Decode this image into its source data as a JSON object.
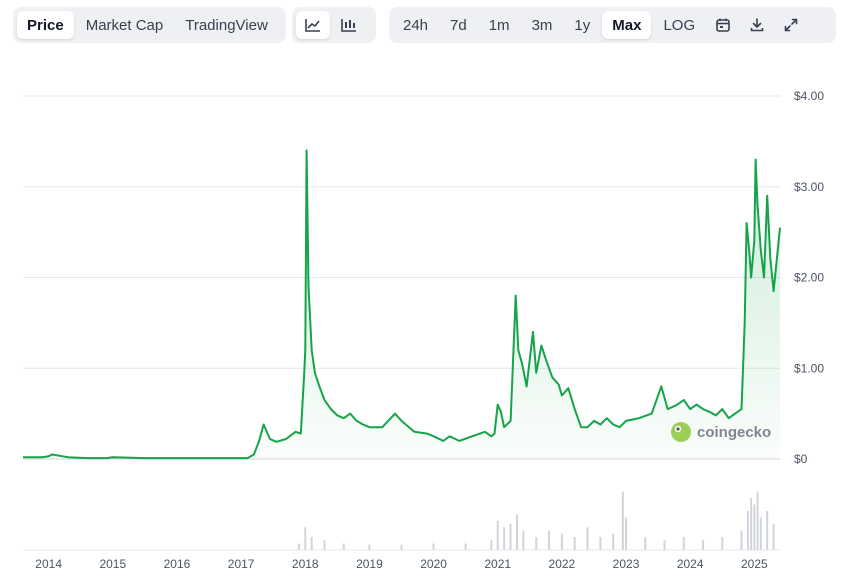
{
  "toolbar": {
    "view_tabs": [
      {
        "label": "Price",
        "active": true
      },
      {
        "label": "Market Cap",
        "active": false
      },
      {
        "label": "TradingView",
        "active": false
      }
    ],
    "chart_type_icons": [
      {
        "icon": "line-chart-icon",
        "active": true
      },
      {
        "icon": "candlestick-chart-icon",
        "active": false
      }
    ],
    "ranges": [
      {
        "label": "24h",
        "active": false
      },
      {
        "label": "7d",
        "active": false
      },
      {
        "label": "1m",
        "active": false
      },
      {
        "label": "3m",
        "active": false
      },
      {
        "label": "1y",
        "active": false
      },
      {
        "label": "Max",
        "active": true
      },
      {
        "label": "LOG",
        "active": false
      }
    ],
    "tool_icons": [
      "calendar-icon",
      "download-icon",
      "expand-icon"
    ]
  },
  "watermark": {
    "text": "coingecko",
    "icon": "coingecko-logo-icon"
  },
  "colors": {
    "line": "#16a34a",
    "fill": "#16a34a",
    "grid": "#e5e7eb",
    "volume": "#d1d5db",
    "active_bg": "#ffffff",
    "group_bg": "#eef0f3"
  },
  "chart_data": {
    "type": "area",
    "title": "",
    "xlabel": "",
    "ylabel": "",
    "ylim": [
      0,
      4
    ],
    "xlim": [
      2013.6,
      2025.4
    ],
    "grid": true,
    "y_tick_labels": [
      "$0",
      "$1.00",
      "$2.00",
      "$3.00",
      "$4.00"
    ],
    "y_tick_values": [
      0,
      1,
      2,
      3,
      4
    ],
    "x_tick_labels": [
      "2014",
      "2015",
      "2016",
      "2017",
      "2018",
      "2019",
      "2020",
      "2021",
      "2022",
      "2023",
      "2024",
      "2025"
    ],
    "x_tick_values": [
      2014,
      2015,
      2016,
      2017,
      2018,
      2019,
      2020,
      2021,
      2022,
      2023,
      2024,
      2025
    ],
    "series": [
      {
        "x": [
          2013.6,
          2013.9,
          2014.0,
          2014.05,
          2014.3,
          2014.6,
          2014.9,
          2015.0,
          2015.5,
          2016.0,
          2016.5,
          2016.9,
          2017.1,
          2017.2,
          2017.28,
          2017.35,
          2017.45,
          2017.55,
          2017.7,
          2017.85,
          2017.93,
          2017.98,
          2018.0,
          2018.02,
          2018.05,
          2018.1,
          2018.15,
          2018.22,
          2018.3,
          2018.4,
          2018.5,
          2018.6,
          2018.7,
          2018.8,
          2018.9,
          2019.0,
          2019.2,
          2019.4,
          2019.5,
          2019.7,
          2019.9,
          2020.0,
          2020.15,
          2020.25,
          2020.4,
          2020.6,
          2020.8,
          2020.9,
          2020.95,
          2021.0,
          2021.05,
          2021.1,
          2021.2,
          2021.28,
          2021.32,
          2021.38,
          2021.45,
          2021.55,
          2021.6,
          2021.68,
          2021.75,
          2021.85,
          2021.95,
          2022.0,
          2022.1,
          2022.2,
          2022.3,
          2022.4,
          2022.5,
          2022.6,
          2022.7,
          2022.8,
          2022.9,
          2023.0,
          2023.2,
          2023.4,
          2023.55,
          2023.65,
          2023.8,
          2023.9,
          2024.0,
          2024.1,
          2024.2,
          2024.3,
          2024.4,
          2024.5,
          2024.6,
          2024.7,
          2024.8,
          2024.85,
          2024.88,
          2024.92,
          2024.95,
          2025.0,
          2025.02,
          2025.05,
          2025.1,
          2025.15,
          2025.2,
          2025.25,
          2025.3,
          2025.35,
          2025.4
        ],
        "y": [
          0.02,
          0.02,
          0.03,
          0.05,
          0.02,
          0.01,
          0.01,
          0.02,
          0.01,
          0.01,
          0.01,
          0.01,
          0.01,
          0.05,
          0.2,
          0.38,
          0.22,
          0.19,
          0.22,
          0.3,
          0.28,
          0.9,
          1.2,
          3.4,
          1.9,
          1.2,
          0.95,
          0.8,
          0.65,
          0.55,
          0.48,
          0.45,
          0.5,
          0.42,
          0.38,
          0.35,
          0.35,
          0.5,
          0.42,
          0.3,
          0.28,
          0.25,
          0.2,
          0.25,
          0.2,
          0.25,
          0.3,
          0.25,
          0.28,
          0.6,
          0.52,
          0.35,
          0.42,
          1.8,
          1.2,
          1.05,
          0.8,
          1.4,
          0.95,
          1.25,
          1.1,
          0.9,
          0.82,
          0.7,
          0.78,
          0.55,
          0.35,
          0.35,
          0.42,
          0.38,
          0.45,
          0.38,
          0.35,
          0.42,
          0.45,
          0.5,
          0.8,
          0.55,
          0.6,
          0.65,
          0.55,
          0.6,
          0.55,
          0.52,
          0.48,
          0.55,
          0.45,
          0.5,
          0.55,
          1.5,
          2.6,
          2.3,
          2.0,
          2.4,
          3.3,
          2.8,
          2.3,
          2.0,
          2.9,
          2.2,
          1.85,
          2.2,
          2.55
        ]
      }
    ],
    "volume": {
      "x": [
        2017.9,
        2018.0,
        2018.1,
        2018.3,
        2018.6,
        2019.0,
        2019.5,
        2020.0,
        2020.5,
        2020.9,
        2021.0,
        2021.1,
        2021.2,
        2021.3,
        2021.4,
        2021.6,
        2021.8,
        2022.0,
        2022.2,
        2022.4,
        2022.6,
        2022.8,
        2022.95,
        2023.0,
        2023.3,
        2023.6,
        2023.9,
        2024.2,
        2024.5,
        2024.8,
        2024.9,
        2024.95,
        2025.0,
        2025.05,
        2025.1,
        2025.2,
        2025.3
      ],
      "y": [
        0.1,
        0.35,
        0.2,
        0.15,
        0.1,
        0.08,
        0.08,
        0.1,
        0.1,
        0.15,
        0.45,
        0.35,
        0.4,
        0.55,
        0.3,
        0.2,
        0.3,
        0.25,
        0.2,
        0.35,
        0.2,
        0.25,
        0.9,
        0.5,
        0.2,
        0.15,
        0.2,
        0.15,
        0.2,
        0.3,
        0.6,
        0.8,
        0.7,
        0.9,
        0.5,
        0.6,
        0.4
      ]
    }
  }
}
